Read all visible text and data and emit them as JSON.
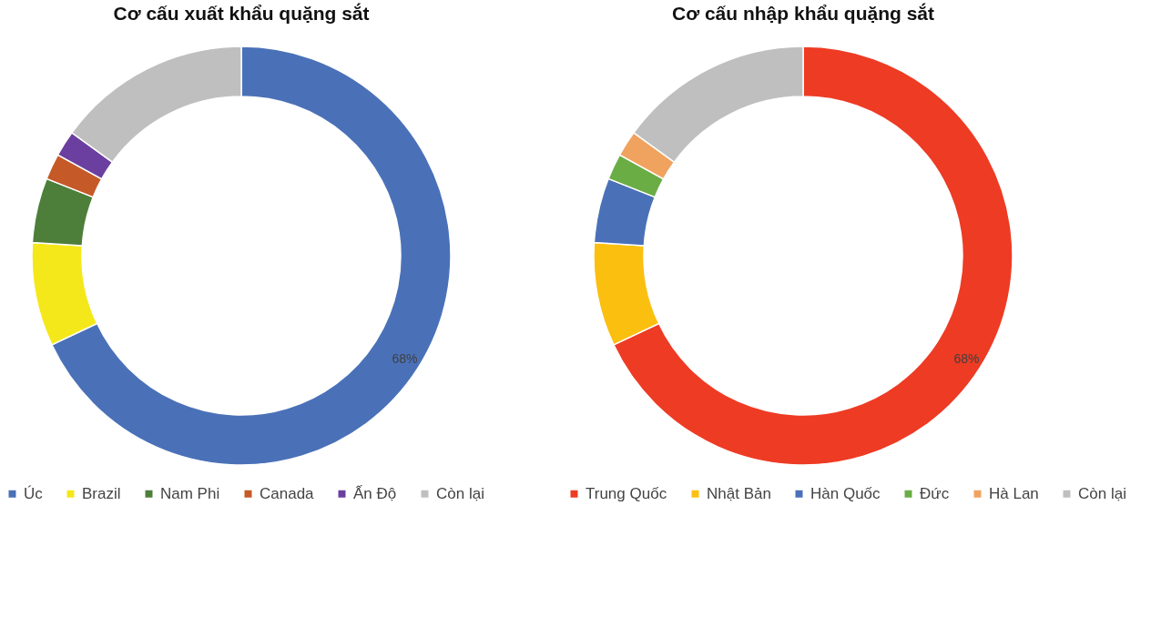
{
  "chart_data": [
    {
      "type": "donut",
      "title": "Cơ cấu xuất khẩu quặng sắt",
      "categories": [
        "Úc",
        "Brazil",
        "Nam Phi",
        "Canada",
        "Ấn Độ",
        "Còn lại"
      ],
      "values": [
        68,
        8,
        5,
        2,
        2,
        15
      ],
      "colors": [
        "#4a71b8",
        "#f5e81a",
        "#4e7f3a",
        "#c55a28",
        "#6b3fa0",
        "#bfbfbf"
      ],
      "value_labels": [
        "68%",
        null,
        null,
        null,
        null,
        null
      ],
      "legend": "bottom"
    },
    {
      "type": "donut",
      "title": "Cơ cấu nhập khẩu quặng sắt",
      "categories": [
        "Trung Quốc",
        "Nhật Bản",
        "Hàn Quốc",
        "Đức",
        "Hà Lan",
        "Còn lại"
      ],
      "values": [
        68,
        8,
        5,
        2,
        2,
        15
      ],
      "colors": [
        "#ee3b24",
        "#fbbf10",
        "#4a71b8",
        "#6aad45",
        "#f0a35e",
        "#bfbfbf"
      ],
      "value_labels": [
        "68%",
        null,
        null,
        null,
        null,
        null
      ],
      "legend": "bottom"
    }
  ]
}
